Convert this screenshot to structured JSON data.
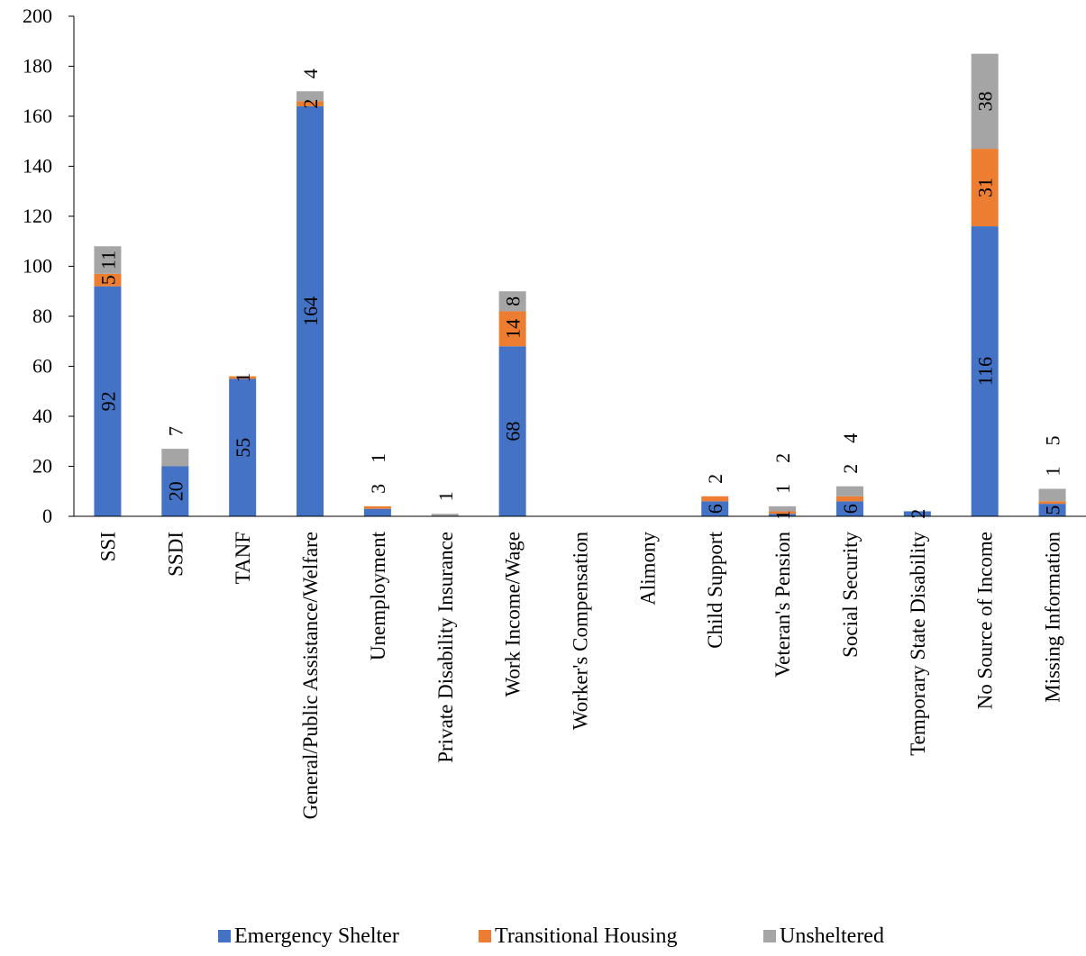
{
  "chart_data": {
    "type": "bar",
    "stacked": true,
    "title": "",
    "xlabel": "",
    "ylabel": "",
    "ylim": [
      0,
      200
    ],
    "yticks": [
      0,
      20,
      40,
      60,
      80,
      100,
      120,
      140,
      160,
      180,
      200
    ],
    "grid": false,
    "legend": "bottom",
    "categories": [
      "SSI",
      "SSDI",
      "TANF",
      "General/Public Assistance/Welfare",
      "Unemployment",
      "Private Disability Insurance",
      "Work Income/Wage",
      "Worker's Compensation",
      "Alimony",
      "Child Support",
      "Veteran's Pension",
      "Social Security",
      "Temporary State Disability",
      "No Source of Income",
      "Missing Information"
    ],
    "series": [
      {
        "name": "Emergency Shelter",
        "color": "#4472C4",
        "values": [
          92,
          20,
          55,
          164,
          3,
          0,
          68,
          0,
          0,
          6,
          1,
          6,
          2,
          116,
          5
        ]
      },
      {
        "name": "Transitional Housing",
        "color": "#ED7D31",
        "values": [
          5,
          0,
          1,
          2,
          1,
          0,
          14,
          0,
          0,
          2,
          1,
          2,
          0,
          31,
          1
        ]
      },
      {
        "name": "Unsheltered",
        "color": "#A5A5A5",
        "values": [
          11,
          7,
          0,
          4,
          0,
          1,
          8,
          0,
          0,
          0,
          2,
          4,
          0,
          38,
          5
        ]
      }
    ],
    "data_labels": [
      {
        "category": "SSI",
        "series": "Emergency Shelter",
        "text": "92",
        "pos": "inside"
      },
      {
        "category": "SSI",
        "series": "Transitional Housing",
        "text": "5",
        "pos": "inside"
      },
      {
        "category": "SSI",
        "series": "Unsheltered",
        "text": "11",
        "pos": "inside"
      },
      {
        "category": "SSDI",
        "series": "Emergency Shelter",
        "text": "20",
        "pos": "inside"
      },
      {
        "category": "SSDI",
        "series": "Unsheltered",
        "text": "7",
        "pos": "above"
      },
      {
        "category": "TANF",
        "series": "Emergency Shelter",
        "text": "55",
        "pos": "inside"
      },
      {
        "category": "TANF",
        "series": "Transitional Housing",
        "text": "1",
        "pos": "inside"
      },
      {
        "category": "General/Public Assistance/Welfare",
        "series": "Emergency Shelter",
        "text": "164",
        "pos": "inside"
      },
      {
        "category": "General/Public Assistance/Welfare",
        "series": "Transitional Housing",
        "text": "2",
        "pos": "inside"
      },
      {
        "category": "General/Public Assistance/Welfare",
        "series": "Unsheltered",
        "text": "4",
        "pos": "above"
      },
      {
        "category": "Unemployment",
        "series": "Emergency Shelter",
        "text": "3",
        "pos": "above"
      },
      {
        "category": "Unemployment",
        "series": "Transitional Housing",
        "text": "1",
        "pos": "above"
      },
      {
        "category": "Private Disability Insurance",
        "series": "Unsheltered",
        "text": "1",
        "pos": "above"
      },
      {
        "category": "Work Income/Wage",
        "series": "Emergency Shelter",
        "text": "68",
        "pos": "inside"
      },
      {
        "category": "Work Income/Wage",
        "series": "Transitional Housing",
        "text": "14",
        "pos": "inside"
      },
      {
        "category": "Work Income/Wage",
        "series": "Unsheltered",
        "text": "8",
        "pos": "inside"
      },
      {
        "category": "Child Support",
        "series": "Emergency Shelter",
        "text": "6",
        "pos": "inside"
      },
      {
        "category": "Child Support",
        "series": "Transitional Housing",
        "text": "2",
        "pos": "above"
      },
      {
        "category": "Veteran's Pension",
        "series": "Emergency Shelter",
        "text": "1",
        "pos": "inside"
      },
      {
        "category": "Veteran's Pension",
        "series": "Transitional Housing",
        "text": "1",
        "pos": "above"
      },
      {
        "category": "Veteran's Pension",
        "series": "Unsheltered",
        "text": "2",
        "pos": "above"
      },
      {
        "category": "Social Security",
        "series": "Emergency Shelter",
        "text": "6",
        "pos": "inside"
      },
      {
        "category": "Social Security",
        "series": "Transitional Housing",
        "text": "2",
        "pos": "above"
      },
      {
        "category": "Social Security",
        "series": "Unsheltered",
        "text": "4",
        "pos": "above"
      },
      {
        "category": "Temporary State Disability",
        "series": "Emergency Shelter",
        "text": "2",
        "pos": "inside"
      },
      {
        "category": "No Source of Income",
        "series": "Emergency Shelter",
        "text": "116",
        "pos": "inside"
      },
      {
        "category": "No Source of Income",
        "series": "Transitional Housing",
        "text": "31",
        "pos": "inside"
      },
      {
        "category": "No Source of Income",
        "series": "Unsheltered",
        "text": "38",
        "pos": "inside"
      },
      {
        "category": "Missing Information",
        "series": "Emergency Shelter",
        "text": "5",
        "pos": "inside"
      },
      {
        "category": "Missing Information",
        "series": "Transitional Housing",
        "text": "1",
        "pos": "above"
      },
      {
        "category": "Missing Information",
        "series": "Unsheltered",
        "text": "5",
        "pos": "above"
      }
    ]
  }
}
